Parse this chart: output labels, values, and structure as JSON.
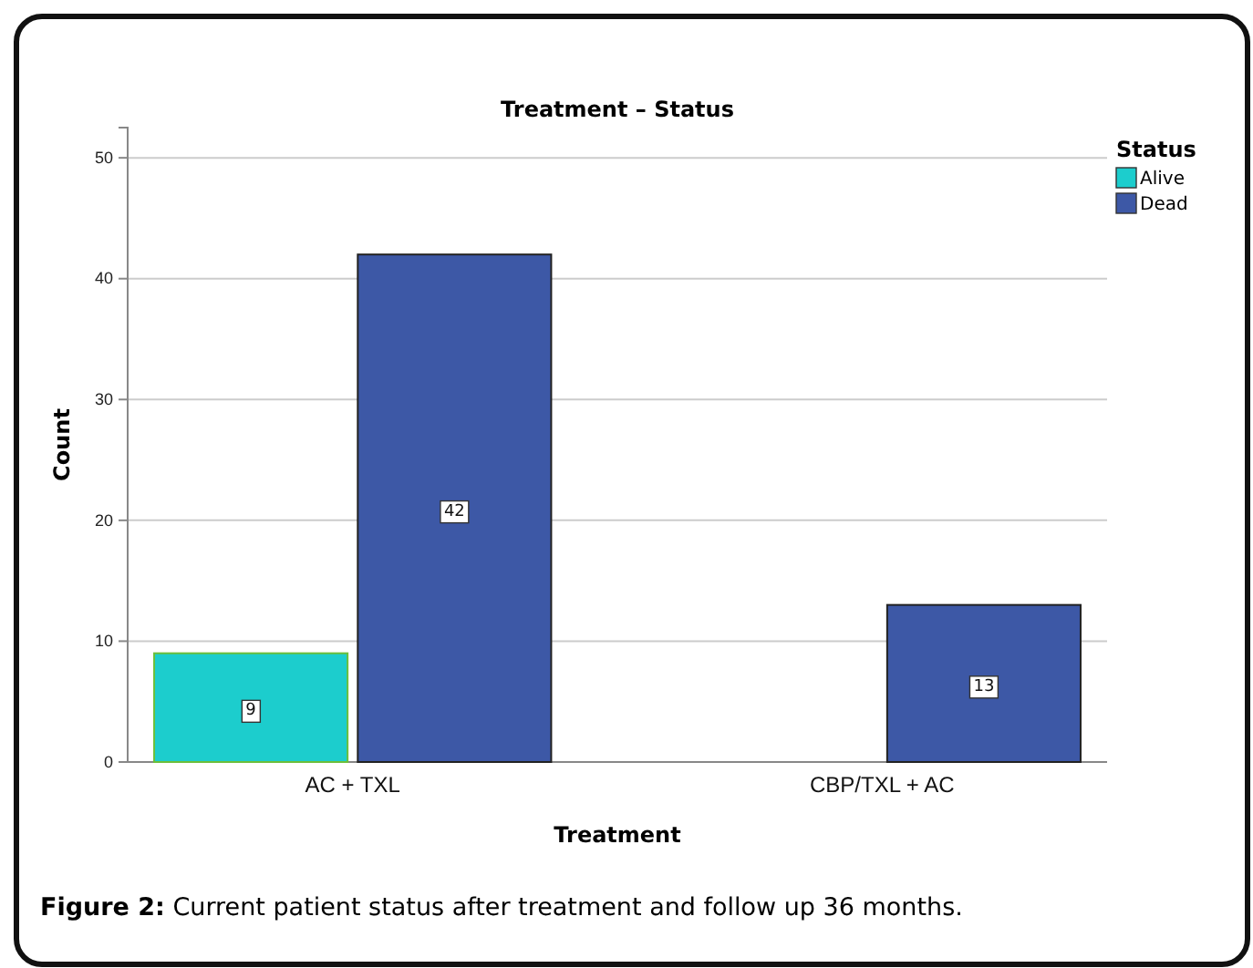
{
  "chart_data": {
    "type": "bar",
    "title": "Treatment – Status",
    "xlabel": "Treatment",
    "ylabel": "Count",
    "legend_title": "Status",
    "categories": [
      "AC + TXL",
      "CBP/TXL + AC"
    ],
    "series": [
      {
        "name": "Alive",
        "color": "#1ccdcd",
        "values": [
          9,
          null
        ]
      },
      {
        "name": "Dead",
        "color": "#3d58a6",
        "values": [
          42,
          13
        ]
      }
    ],
    "ylim": [
      0,
      52.5
    ],
    "yticks": [
      0,
      10,
      20,
      30,
      40,
      50
    ],
    "grid": "y",
    "legend": "top right",
    "data_labels": true,
    "annotations": [
      "Figure 2: Current patient status after treatment and follow up 36 months."
    ]
  }
}
